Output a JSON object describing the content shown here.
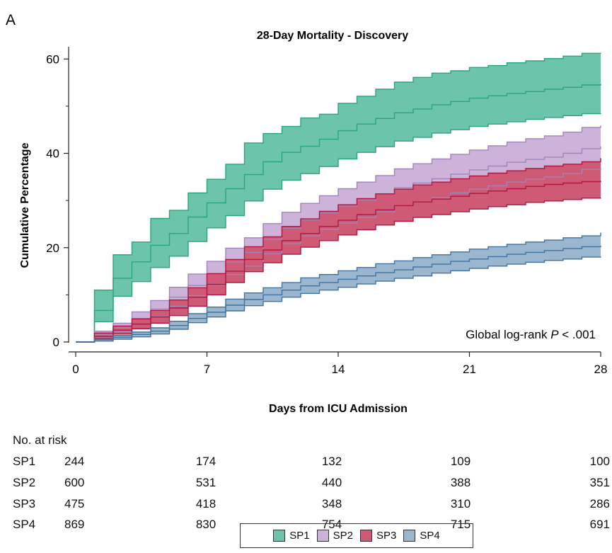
{
  "panel_label": "A",
  "chart_data": {
    "type": "line",
    "title": "28-Day Mortality - Discovery",
    "xlabel": "Days from ICU Admission",
    "ylabel": "Cumulative Percentage",
    "xlim": [
      0,
      28
    ],
    "ylim": [
      0,
      62
    ],
    "x_ticks": [
      0,
      7,
      14,
      21,
      28
    ],
    "y_ticks": [
      0,
      20,
      40,
      60
    ],
    "grid": false,
    "annotation": {
      "prefix": "Global log-rank ",
      "italic": "P",
      "suffix": " < .001"
    },
    "x": [
      0,
      1,
      2,
      3,
      4,
      5,
      6,
      7,
      8,
      9,
      10,
      11,
      12,
      13,
      14,
      15,
      16,
      17,
      18,
      19,
      20,
      21,
      22,
      23,
      24,
      25,
      26,
      27,
      28
    ],
    "series": [
      {
        "name": "SP1",
        "fill": "#6cc4aa",
        "line": "#2aa57c",
        "estimate": [
          0,
          6.7,
          13.5,
          17.0,
          20.5,
          23.0,
          26.5,
          29.5,
          32.5,
          35.5,
          38.2,
          40.2,
          41.5,
          43.0,
          44.8,
          46.2,
          47.4,
          48.6,
          49.4,
          50.3,
          51.0,
          51.7,
          52.2,
          52.7,
          53.1,
          53.6,
          54.0,
          54.5,
          54.7
        ],
        "lower": [
          0,
          4.3,
          9.7,
          12.8,
          15.8,
          18.2,
          21.3,
          24.2,
          26.8,
          29.9,
          32.4,
          34.3,
          35.7,
          37.2,
          38.8,
          40.2,
          41.4,
          42.6,
          43.4,
          44.3,
          45.0,
          45.7,
          46.2,
          46.7,
          47.2,
          47.6,
          48.0,
          48.4,
          48.5
        ],
        "upper": [
          0,
          11.0,
          18.5,
          21.2,
          26.2,
          27.9,
          31.6,
          34.5,
          37.7,
          42.2,
          44.2,
          45.7,
          47.5,
          48.3,
          50.6,
          52.1,
          53.6,
          55.1,
          56.1,
          57.0,
          57.5,
          58.2,
          58.6,
          59.2,
          59.6,
          60.1,
          60.6,
          61.2,
          61.3
        ]
      },
      {
        "name": "SP2",
        "fill": "#cdb3da",
        "line": "#9f86b8",
        "estimate": [
          0,
          1.5,
          3.0,
          5.0,
          7.0,
          9.5,
          12.0,
          14.5,
          17.0,
          19.0,
          21.8,
          24.1,
          25.9,
          27.4,
          28.8,
          30.1,
          31.4,
          32.7,
          33.7,
          34.6,
          35.6,
          36.5,
          37.3,
          38.1,
          38.7,
          39.2,
          40.0,
          41.0,
          41.5
        ],
        "lower": [
          0,
          0.9,
          2.2,
          3.8,
          5.4,
          7.6,
          9.8,
          12.0,
          14.3,
          16.1,
          18.7,
          20.9,
          22.5,
          23.9,
          25.2,
          26.4,
          27.6,
          28.8,
          29.7,
          30.6,
          31.6,
          32.4,
          33.1,
          33.9,
          34.5,
          35.0,
          35.7,
          36.6,
          37.0
        ],
        "upper": [
          0,
          2.3,
          4.0,
          6.4,
          8.8,
          11.6,
          14.4,
          17.1,
          19.9,
          22.1,
          25.1,
          27.5,
          29.4,
          31.0,
          32.5,
          33.9,
          35.3,
          36.7,
          37.8,
          38.8,
          39.8,
          40.7,
          41.6,
          42.4,
          43.1,
          43.7,
          44.5,
          45.5,
          45.9
        ]
      },
      {
        "name": "SP3",
        "fill": "#cf5a76",
        "line": "#b0163f",
        "estimate": [
          0,
          1.2,
          2.5,
          3.8,
          5.3,
          7.2,
          9.5,
          12.2,
          15.0,
          17.5,
          19.5,
          21.5,
          23.0,
          24.5,
          25.8,
          27.0,
          28.0,
          28.9,
          29.7,
          30.3,
          30.9,
          31.5,
          32.0,
          32.5,
          33.0,
          33.4,
          33.7,
          34.0,
          34.2
        ],
        "lower": [
          0,
          0.6,
          1.7,
          2.8,
          4.0,
          5.6,
          7.6,
          10.0,
          12.6,
          14.9,
          16.8,
          18.6,
          20.1,
          21.5,
          22.7,
          23.8,
          24.8,
          25.6,
          26.4,
          27.0,
          27.6,
          28.2,
          28.7,
          29.1,
          29.6,
          29.9,
          30.2,
          30.5,
          30.6
        ],
        "upper": [
          0,
          1.9,
          3.4,
          4.9,
          6.7,
          8.9,
          11.5,
          14.5,
          17.5,
          20.2,
          22.3,
          24.5,
          26.1,
          27.7,
          29.1,
          30.4,
          31.4,
          32.4,
          33.3,
          33.9,
          34.6,
          35.2,
          35.8,
          36.3,
          36.8,
          37.3,
          37.7,
          38.2,
          39.0
        ]
      },
      {
        "name": "SP4",
        "fill": "#9bb7cf",
        "line": "#3f72a0",
        "estimate": [
          0,
          0.5,
          1.0,
          1.6,
          2.3,
          3.5,
          5.0,
          6.3,
          7.8,
          9.0,
          10.0,
          11.0,
          11.9,
          12.6,
          13.3,
          14.0,
          14.7,
          15.3,
          15.9,
          16.5,
          17.1,
          17.6,
          18.1,
          18.6,
          19.0,
          19.4,
          19.8,
          20.2,
          20.4
        ],
        "lower": [
          0,
          0.2,
          0.6,
          1.1,
          1.7,
          2.7,
          4.1,
          5.3,
          6.6,
          7.7,
          8.6,
          9.5,
          10.3,
          11.0,
          11.6,
          12.3,
          12.9,
          13.5,
          14.0,
          14.6,
          15.1,
          15.6,
          16.1,
          16.5,
          16.9,
          17.3,
          17.6,
          18.0,
          18.1
        ],
        "upper": [
          0,
          0.8,
          1.4,
          2.1,
          3.0,
          4.4,
          6.0,
          7.4,
          9.1,
          10.4,
          11.5,
          12.6,
          13.6,
          14.3,
          15.1,
          15.8,
          16.6,
          17.2,
          17.9,
          18.5,
          19.1,
          19.7,
          20.2,
          20.7,
          21.2,
          21.6,
          22.1,
          22.5,
          23.2
        ]
      }
    ]
  },
  "risk_table": {
    "header": "No. at risk",
    "days": [
      0,
      7,
      14,
      21,
      28
    ],
    "rows": [
      {
        "label": "SP1",
        "values": [
          "244",
          "174",
          "132",
          "109",
          "100"
        ]
      },
      {
        "label": "SP2",
        "values": [
          "600",
          "531",
          "440",
          "388",
          "351"
        ]
      },
      {
        "label": "SP3",
        "values": [
          "475",
          "418",
          "348",
          "310",
          "286"
        ]
      },
      {
        "label": "SP4",
        "values": [
          "869",
          "830",
          "754",
          "715",
          "691"
        ]
      }
    ]
  },
  "legend": [
    {
      "label": "SP1",
      "color": "#6cc4aa"
    },
    {
      "label": "SP2",
      "color": "#cdb3da"
    },
    {
      "label": "SP3",
      "color": "#cf5a76"
    },
    {
      "label": "SP4",
      "color": "#9bb7cf"
    }
  ]
}
